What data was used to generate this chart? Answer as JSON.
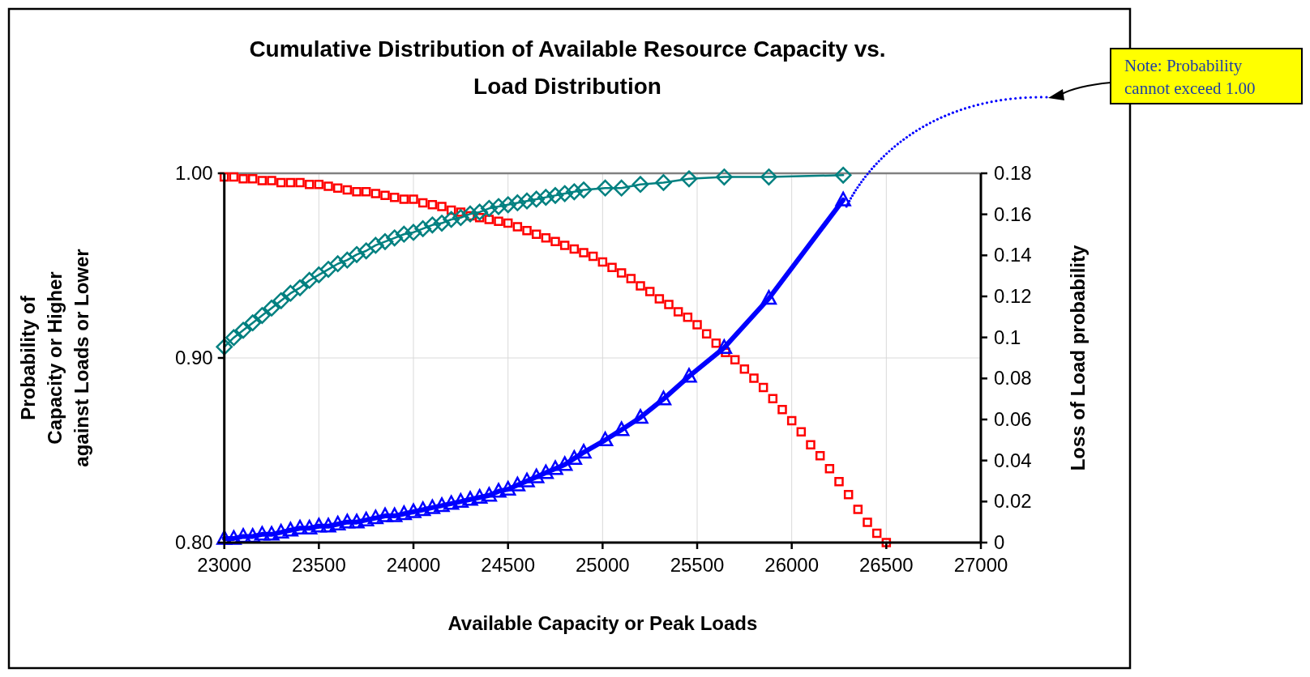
{
  "chart_data": {
    "type": "line",
    "title": "Cumulative Distribution of Available Resource Capacity vs. Load Distribution",
    "xlabel": "Available Capacity or Peak Loads",
    "ylabel": "Probability of Capacity or Higher against Loads or Lower",
    "y2label": "Loss of Load probability",
    "annotations": [
      "Note: Probability cannot exceed 1.00"
    ],
    "xlim": [
      23000,
      27000
    ],
    "xticks": [
      23000,
      23500,
      24000,
      24500,
      25000,
      25500,
      26000,
      26500,
      27000
    ],
    "ylim": [
      0.8,
      1
    ],
    "yticks": [
      {
        "value": 0.8,
        "label": "0.80"
      },
      {
        "value": 0.9,
        "label": "0.90"
      },
      {
        "value": 1,
        "label": "1.00"
      }
    ],
    "y2lim": [
      0,
      0.18
    ],
    "y2ticks": [
      0,
      0.02,
      0.04,
      0.06,
      0.08,
      0.1,
      0.12,
      0.14,
      0.16,
      0.18
    ],
    "grid": true,
    "series": [
      {
        "type": "scatter",
        "marker": "square",
        "color": "#ff0000",
        "x": [
          23000,
          23050,
          23100,
          23150,
          23200,
          23250,
          23300,
          23350,
          23400,
          23450,
          23500,
          23550,
          23600,
          23650,
          23700,
          23750,
          23800,
          23850,
          23900,
          23950,
          24000,
          24050,
          24100,
          24150,
          24200,
          24250,
          24300,
          24350,
          24400,
          24450,
          24500,
          24550,
          24600,
          24650,
          24700,
          24750,
          24800,
          24850,
          24900,
          24950,
          25000,
          25050,
          25100,
          25150,
          25200,
          25250,
          25300,
          25350,
          25400,
          25450,
          25500,
          25550,
          25600,
          25650,
          25700,
          25750,
          25800,
          25850,
          25900,
          25950,
          26000,
          26050,
          26100,
          26150,
          26200,
          26250,
          26300,
          26350,
          26400,
          26450,
          26500
        ],
        "values": [
          0.998,
          0.998,
          0.997,
          0.997,
          0.996,
          0.996,
          0.995,
          0.995,
          0.995,
          0.994,
          0.994,
          0.993,
          0.992,
          0.991,
          0.99,
          0.99,
          0.989,
          0.988,
          0.987,
          0.986,
          0.986,
          0.984,
          0.983,
          0.982,
          0.98,
          0.979,
          0.977,
          0.976,
          0.975,
          0.974,
          0.973,
          0.971,
          0.969,
          0.967,
          0.965,
          0.963,
          0.961,
          0.959,
          0.957,
          0.955,
          0.952,
          0.949,
          0.946,
          0.943,
          0.939,
          0.936,
          0.932,
          0.929,
          0.925,
          0.922,
          0.918,
          0.913,
          0.908,
          0.903,
          0.899,
          0.894,
          0.889,
          0.884,
          0.878,
          0.872,
          0.866,
          0.86,
          0.853,
          0.847,
          0.84,
          0.833,
          0.826,
          0.818,
          0.811,
          0.805,
          0.8
        ]
      },
      {
        "type": "line",
        "marker": "diamond",
        "color": "#008080",
        "x": [
          23000,
          23050,
          23100,
          23150,
          23200,
          23250,
          23300,
          23350,
          23400,
          23450,
          23500,
          23550,
          23600,
          23650,
          23700,
          23750,
          23800,
          23850,
          23900,
          23950,
          24000,
          24050,
          24100,
          24150,
          24200,
          24250,
          24300,
          24350,
          24400,
          24450,
          24500,
          24550,
          24600,
          24650,
          24700,
          24750,
          24800,
          24850,
          24900,
          25014,
          25100,
          25200,
          25322,
          25457,
          25643,
          25879,
          26272
        ],
        "values": [
          0.906,
          0.911,
          0.915,
          0.919,
          0.923,
          0.927,
          0.931,
          0.935,
          0.938,
          0.942,
          0.945,
          0.948,
          0.951,
          0.953,
          0.956,
          0.958,
          0.961,
          0.963,
          0.965,
          0.967,
          0.968,
          0.97,
          0.972,
          0.973,
          0.975,
          0.976,
          0.978,
          0.979,
          0.981,
          0.982,
          0.983,
          0.984,
          0.985,
          0.986,
          0.987,
          0.988,
          0.989,
          0.99,
          0.991,
          0.992,
          0.992,
          0.994,
          0.995,
          0.997,
          0.998,
          0.998,
          0.999
        ]
      },
      {
        "type": "line",
        "marker": "triangle",
        "axis": "y2",
        "color": "#0000ff",
        "x": [
          23000,
          23050,
          23100,
          23150,
          23200,
          23250,
          23300,
          23350,
          23400,
          23450,
          23500,
          23550,
          23600,
          23650,
          23700,
          23750,
          23800,
          23850,
          23900,
          23950,
          24000,
          24050,
          24100,
          24150,
          24200,
          24250,
          24300,
          24350,
          24400,
          24450,
          24500,
          24550,
          24600,
          24650,
          24700,
          24750,
          24800,
          24850,
          24900,
          25014,
          25100,
          25200,
          25322,
          25457,
          25643,
          25879,
          26272
        ],
        "values": [
          0.002,
          0.002,
          0.003,
          0.003,
          0.004,
          0.004,
          0.005,
          0.006,
          0.007,
          0.007,
          0.008,
          0.008,
          0.009,
          0.01,
          0.01,
          0.011,
          0.012,
          0.013,
          0.013,
          0.014,
          0.015,
          0.016,
          0.017,
          0.018,
          0.019,
          0.02,
          0.021,
          0.022,
          0.023,
          0.025,
          0.026,
          0.028,
          0.03,
          0.032,
          0.034,
          0.036,
          0.038,
          0.041,
          0.044,
          0.05,
          0.055,
          0.061,
          0.07,
          0.081,
          0.095,
          0.119,
          0.167
        ]
      }
    ]
  }
}
